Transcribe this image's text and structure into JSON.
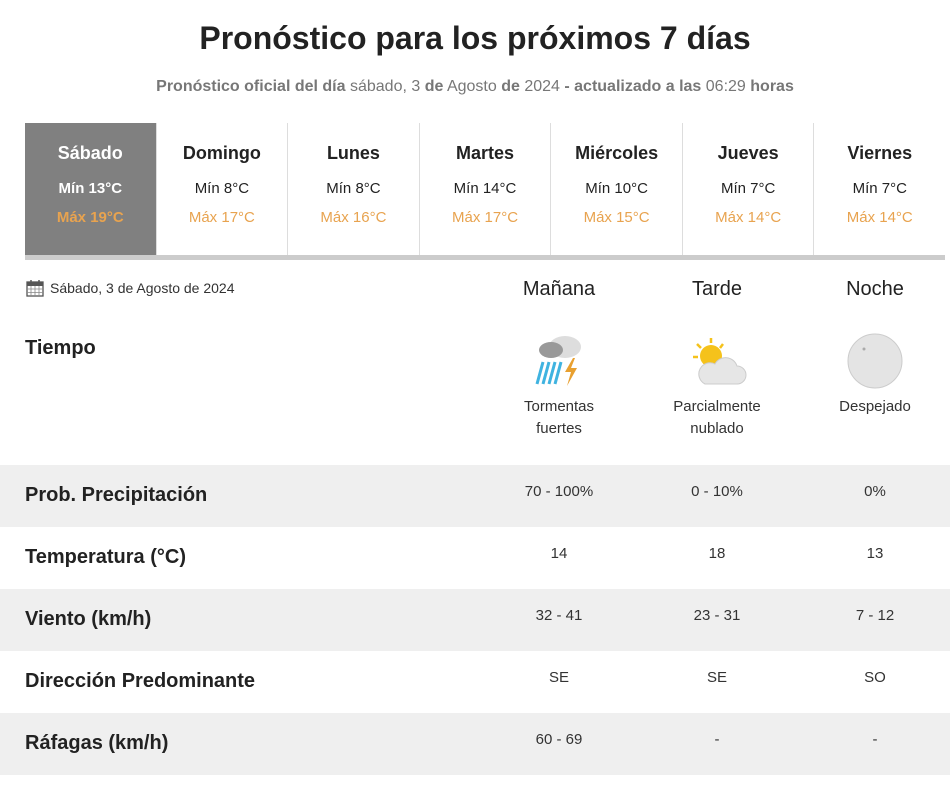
{
  "title": "Pronóstico para los próximos 7 días",
  "subtitle": {
    "p1": "Pronóstico oficial del día",
    "date": "sábado, 3",
    "p2": "de",
    "month": "Agosto",
    "p3": "de",
    "year": "2024",
    "p4": "- actualizado a las",
    "time": "06:29",
    "p5": "horas"
  },
  "days": [
    {
      "name": "Sábado",
      "min": "Mín 13°C",
      "max": "Máx 19°C",
      "selected": true
    },
    {
      "name": "Domingo",
      "min": "Mín 8°C",
      "max": "Máx 17°C"
    },
    {
      "name": "Lunes",
      "min": "Mín 8°C",
      "max": "Máx 16°C"
    },
    {
      "name": "Martes",
      "min": "Mín 14°C",
      "max": "Máx 17°C"
    },
    {
      "name": "Miércoles",
      "min": "Mín 10°C",
      "max": "Máx 15°C"
    },
    {
      "name": "Jueves",
      "min": "Mín 7°C",
      "max": "Máx 14°C"
    },
    {
      "name": "Viernes",
      "min": "Mín 7°C",
      "max": "Máx 14°C"
    }
  ],
  "detail": {
    "date": "Sábado, 3 de Agosto de 2024",
    "columns": [
      "Mañana",
      "Tarde",
      "Noche"
    ],
    "tiempo_label": "Tiempo",
    "weather": [
      {
        "icon": "thunderstorm-icon",
        "line1": "Tormentas",
        "line2": "fuertes"
      },
      {
        "icon": "partly-cloudy-icon",
        "line1": "Parcialmente",
        "line2": "nublado"
      },
      {
        "icon": "clear-night-moon-icon",
        "line1": "Despejado",
        "line2": ""
      }
    ],
    "rows": [
      {
        "label": "Prob. Precipitación",
        "values": [
          "70 - 100%",
          "0 - 10%",
          "0%"
        ]
      },
      {
        "label": "Temperatura (°C)",
        "values": [
          "14",
          "18",
          "13"
        ]
      },
      {
        "label": "Viento (km/h)",
        "values": [
          "32 - 41",
          "23 - 31",
          "7 - 12"
        ]
      },
      {
        "label": "Dirección Predominante",
        "values": [
          "SE",
          "SE",
          "SO"
        ]
      },
      {
        "label": "Ráfagas (km/h)",
        "values": [
          "60 - 69",
          "-",
          "-"
        ]
      }
    ]
  },
  "colors": {
    "selected_tab": "#808080",
    "max_temp": "#e8a34f",
    "row_alt": "#efefef"
  }
}
